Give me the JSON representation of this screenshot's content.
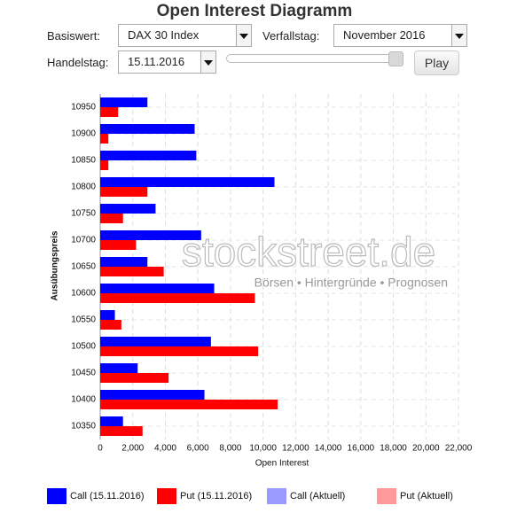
{
  "header": {
    "title": "Open Interest Diagramm"
  },
  "controls": {
    "basiswert_label": "Basiswert:",
    "basiswert": "DAX 30 Index",
    "verfallstag_label": "Verfallstag:",
    "verfallstag": "November 2016",
    "handelstag_label": "Handelstag:",
    "handelstag": "15.11.2016",
    "play": "Play"
  },
  "chart_data": {
    "type": "bar",
    "categories": [
      "10950",
      "10900",
      "10850",
      "10800",
      "10750",
      "10700",
      "10650",
      "10600",
      "10550",
      "10500",
      "10450",
      "10400",
      "10350"
    ],
    "series": [
      {
        "name": "Call (15.11.2016)",
        "color": "#0000ff",
        "values": [
          2900,
          5800,
          5900,
          10700,
          3400,
          6200,
          2900,
          7000,
          900,
          6800,
          2300,
          6400,
          1400
        ]
      },
      {
        "name": "Put (15.11.2016)",
        "color": "#ff0000",
        "values": [
          1100,
          500,
          500,
          2900,
          1400,
          2200,
          3900,
          9500,
          1300,
          9700,
          4200,
          10900,
          2600
        ]
      },
      {
        "name": "Call (Aktuell)",
        "color": "#9999ff",
        "values": [
          null,
          null,
          null,
          null,
          null,
          null,
          null,
          null,
          null,
          null,
          null,
          null,
          null
        ]
      },
      {
        "name": "Put (Aktuell)",
        "color": "#ff9999",
        "values": [
          null,
          null,
          null,
          null,
          null,
          null,
          null,
          null,
          null,
          null,
          null,
          null,
          null
        ]
      }
    ],
    "xlabel": "Open Interest",
    "ylabel": "Ausübungspreis",
    "xlim": [
      0,
      22000
    ],
    "xticks": [
      0,
      {
        "value": 2000,
        "label": "2,000"
      },
      {
        "value": 4000,
        "label": "4,000"
      },
      {
        "value": 6000,
        "label": "6,000"
      },
      {
        "value": 8000,
        "label": "8,000"
      },
      {
        "value": 10000,
        "label": "10,000"
      },
      {
        "value": 12000,
        "label": "12,000"
      },
      {
        "value": 14000,
        "label": "14,000"
      },
      {
        "value": 16000,
        "label": "16,000"
      },
      {
        "value": 18000,
        "label": "18,000"
      },
      {
        "value": 20000,
        "label": "20,000"
      },
      {
        "value": 22000,
        "label": "22,000"
      }
    ],
    "grid": true,
    "legend": "bottom",
    "watermark": {
      "text": "stockstreet.de",
      "tagline": "Börsen • Hintergründe • Prognosen"
    }
  }
}
